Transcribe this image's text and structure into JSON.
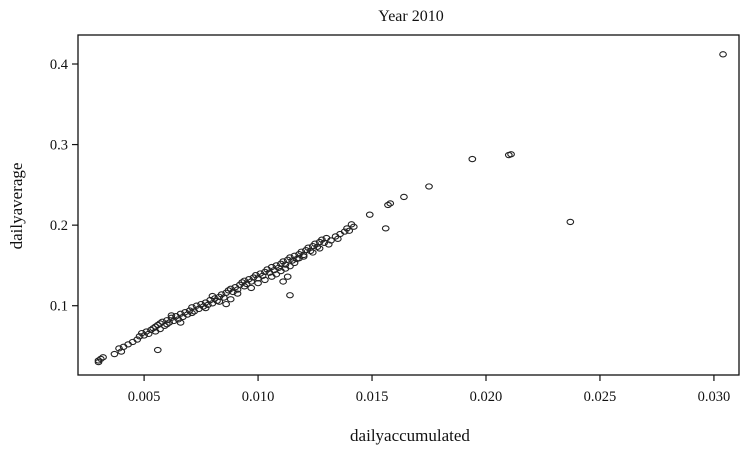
{
  "chart_data": {
    "type": "scatter",
    "title": "Year 2010",
    "xlabel": "dailyaccumulated",
    "ylabel": "dailyaverage",
    "xlim": [
      0.0021,
      0.0311
    ],
    "ylim": [
      0.014,
      0.436
    ],
    "xticks": [
      0.005,
      0.01,
      0.015,
      0.02,
      0.025,
      0.03
    ],
    "xtick_labels": [
      "0.005",
      "0.010",
      "0.015",
      "0.020",
      "0.025",
      "0.030"
    ],
    "yticks": [
      0.1,
      0.2,
      0.3,
      0.4
    ],
    "ytick_labels": [
      "0.1",
      "0.2",
      "0.3",
      "0.4"
    ],
    "grid": false,
    "legend": "none",
    "marker": "open-circle",
    "color": "#222222",
    "points": [
      [
        0.003,
        0.032
      ],
      [
        0.0031,
        0.034
      ],
      [
        0.0032,
        0.036
      ],
      [
        0.003,
        0.03
      ],
      [
        0.0037,
        0.04
      ],
      [
        0.0039,
        0.047
      ],
      [
        0.004,
        0.043
      ],
      [
        0.0041,
        0.049
      ],
      [
        0.0043,
        0.052
      ],
      [
        0.0045,
        0.055
      ],
      [
        0.0047,
        0.058
      ],
      [
        0.0048,
        0.062
      ],
      [
        0.0049,
        0.066
      ],
      [
        0.005,
        0.063
      ],
      [
        0.0051,
        0.068
      ],
      [
        0.0052,
        0.065
      ],
      [
        0.0053,
        0.07
      ],
      [
        0.0054,
        0.072
      ],
      [
        0.0055,
        0.068
      ],
      [
        0.0055,
        0.074
      ],
      [
        0.0056,
        0.076
      ],
      [
        0.0057,
        0.071
      ],
      [
        0.0057,
        0.078
      ],
      [
        0.0058,
        0.08
      ],
      [
        0.0059,
        0.075
      ],
      [
        0.006,
        0.082
      ],
      [
        0.006,
        0.077
      ],
      [
        0.0061,
        0.079
      ],
      [
        0.0062,
        0.085
      ],
      [
        0.0063,
        0.081
      ],
      [
        0.0064,
        0.087
      ],
      [
        0.0065,
        0.083
      ],
      [
        0.0066,
        0.09
      ],
      [
        0.0067,
        0.086
      ],
      [
        0.0068,
        0.092
      ],
      [
        0.0069,
        0.089
      ],
      [
        0.007,
        0.094
      ],
      [
        0.0071,
        0.098
      ],
      [
        0.0072,
        0.093
      ],
      [
        0.0073,
        0.1
      ],
      [
        0.0074,
        0.096
      ],
      [
        0.0075,
        0.102
      ],
      [
        0.0076,
        0.099
      ],
      [
        0.0077,
        0.104
      ],
      [
        0.0078,
        0.101
      ],
      [
        0.0079,
        0.107
      ],
      [
        0.008,
        0.103
      ],
      [
        0.0081,
        0.109
      ],
      [
        0.0082,
        0.106
      ],
      [
        0.0083,
        0.111
      ],
      [
        0.0084,
        0.114
      ],
      [
        0.0085,
        0.11
      ],
      [
        0.0086,
        0.116
      ],
      [
        0.0087,
        0.119
      ],
      [
        0.0088,
        0.121
      ],
      [
        0.0089,
        0.117
      ],
      [
        0.009,
        0.123
      ],
      [
        0.0091,
        0.12
      ],
      [
        0.0092,
        0.126
      ],
      [
        0.0093,
        0.129
      ],
      [
        0.0094,
        0.131
      ],
      [
        0.0095,
        0.127
      ],
      [
        0.0096,
        0.133
      ],
      [
        0.0097,
        0.13
      ],
      [
        0.0098,
        0.135
      ],
      [
        0.0099,
        0.138
      ],
      [
        0.01,
        0.134
      ],
      [
        0.0101,
        0.14
      ],
      [
        0.0102,
        0.137
      ],
      [
        0.0103,
        0.142
      ],
      [
        0.0104,
        0.145
      ],
      [
        0.0105,
        0.141
      ],
      [
        0.0106,
        0.148
      ],
      [
        0.0107,
        0.144
      ],
      [
        0.0108,
        0.15
      ],
      [
        0.0109,
        0.147
      ],
      [
        0.011,
        0.152
      ],
      [
        0.0111,
        0.155
      ],
      [
        0.0112,
        0.151
      ],
      [
        0.0113,
        0.157
      ],
      [
        0.0114,
        0.16
      ],
      [
        0.0115,
        0.156
      ],
      [
        0.0116,
        0.162
      ],
      [
        0.0117,
        0.158
      ],
      [
        0.0118,
        0.164
      ],
      [
        0.0119,
        0.167
      ],
      [
        0.012,
        0.163
      ],
      [
        0.0121,
        0.169
      ],
      [
        0.0122,
        0.172
      ],
      [
        0.0123,
        0.168
      ],
      [
        0.0124,
        0.174
      ],
      [
        0.0125,
        0.177
      ],
      [
        0.0126,
        0.173
      ],
      [
        0.0127,
        0.179
      ],
      [
        0.0128,
        0.182
      ],
      [
        0.0129,
        0.178
      ],
      [
        0.013,
        0.184
      ],
      [
        0.0132,
        0.181
      ],
      [
        0.0134,
        0.186
      ],
      [
        0.0136,
        0.189
      ],
      [
        0.0138,
        0.192
      ],
      [
        0.0139,
        0.196
      ],
      [
        0.014,
        0.193
      ],
      [
        0.0141,
        0.201
      ],
      [
        0.0142,
        0.198
      ],
      [
        0.0062,
        0.088
      ],
      [
        0.0066,
        0.079
      ],
      [
        0.0071,
        0.091
      ],
      [
        0.0077,
        0.097
      ],
      [
        0.008,
        0.112
      ],
      [
        0.0083,
        0.105
      ],
      [
        0.0086,
        0.102
      ],
      [
        0.0088,
        0.108
      ],
      [
        0.0091,
        0.115
      ],
      [
        0.0094,
        0.124
      ],
      [
        0.0097,
        0.122
      ],
      [
        0.01,
        0.128
      ],
      [
        0.0103,
        0.132
      ],
      [
        0.0106,
        0.136
      ],
      [
        0.0108,
        0.139
      ],
      [
        0.011,
        0.143
      ],
      [
        0.0112,
        0.146
      ],
      [
        0.0114,
        0.149
      ],
      [
        0.0116,
        0.153
      ],
      [
        0.0118,
        0.159
      ],
      [
        0.012,
        0.161
      ],
      [
        0.0124,
        0.166
      ],
      [
        0.0127,
        0.171
      ],
      [
        0.0131,
        0.176
      ],
      [
        0.0135,
        0.183
      ],
      [
        0.0113,
        0.136
      ],
      [
        0.0111,
        0.13
      ],
      [
        0.0114,
        0.113
      ],
      [
        0.0056,
        0.045
      ],
      [
        0.0149,
        0.213
      ],
      [
        0.0156,
        0.196
      ],
      [
        0.0157,
        0.225
      ],
      [
        0.0158,
        0.227
      ],
      [
        0.0164,
        0.235
      ],
      [
        0.0175,
        0.248
      ],
      [
        0.0194,
        0.282
      ],
      [
        0.021,
        0.287
      ],
      [
        0.0211,
        0.288
      ],
      [
        0.0237,
        0.204
      ],
      [
        0.0304,
        0.412
      ]
    ]
  }
}
